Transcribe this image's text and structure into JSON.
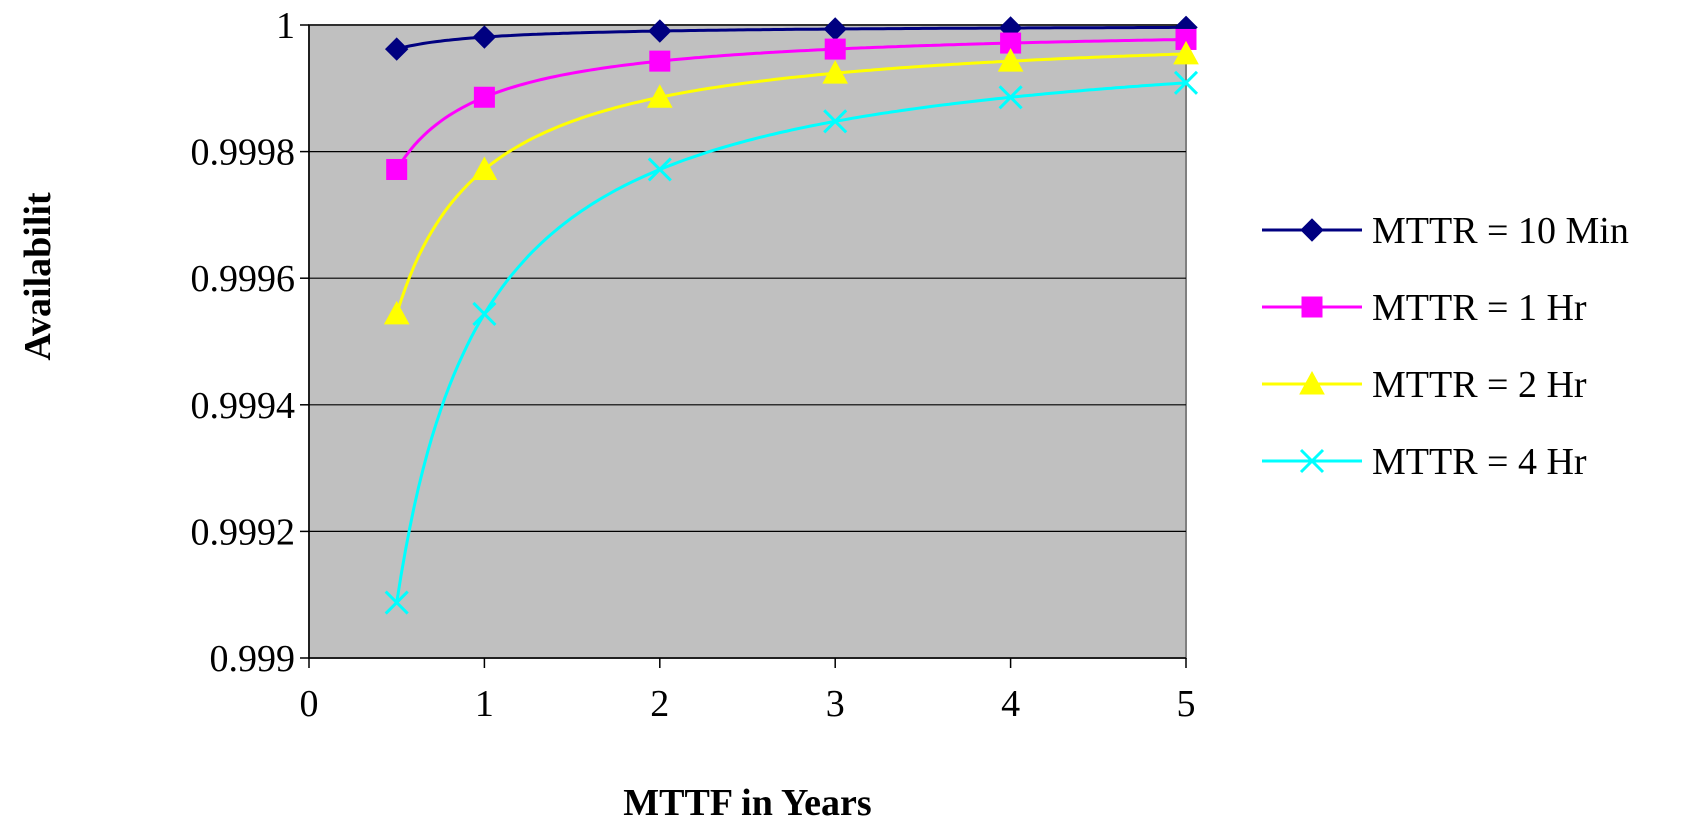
{
  "chart_data": {
    "type": "line",
    "title": "",
    "xlabel": "MTTF in Years",
    "ylabel": "Availabilit",
    "xlim": [
      0,
      5
    ],
    "ylim": [
      0.999,
      1
    ],
    "x_ticks": [
      0,
      1,
      2,
      3,
      4,
      5
    ],
    "y_ticks": [
      0.999,
      0.9992,
      0.9994,
      0.9996,
      0.9998,
      1
    ],
    "x_tick_labels": [
      "0",
      "1",
      "2",
      "3",
      "4",
      "5"
    ],
    "y_tick_labels": [
      "0.999",
      "0.9992",
      "0.9994",
      "0.9996",
      "0.9998",
      "1"
    ],
    "grid": true,
    "plot_background": "#c0c0c0",
    "legend_position": "right",
    "marker_x": [
      0.5,
      1,
      2,
      3,
      4,
      5
    ],
    "series": [
      {
        "name": "MTTR = 10 Min",
        "color": "#000080",
        "marker": "diamond",
        "mttr_hours": 0.16667
      },
      {
        "name": "MTTR = 1 Hr",
        "color": "#ff00ff",
        "marker": "square",
        "mttr_hours": 1
      },
      {
        "name": "MTTR = 2 Hr",
        "color": "#ffff00",
        "marker": "triangle",
        "mttr_hours": 2
      },
      {
        "name": "MTTR = 4 Hr",
        "color": "#00ffff",
        "marker": "x",
        "mttr_hours": 4
      }
    ]
  }
}
